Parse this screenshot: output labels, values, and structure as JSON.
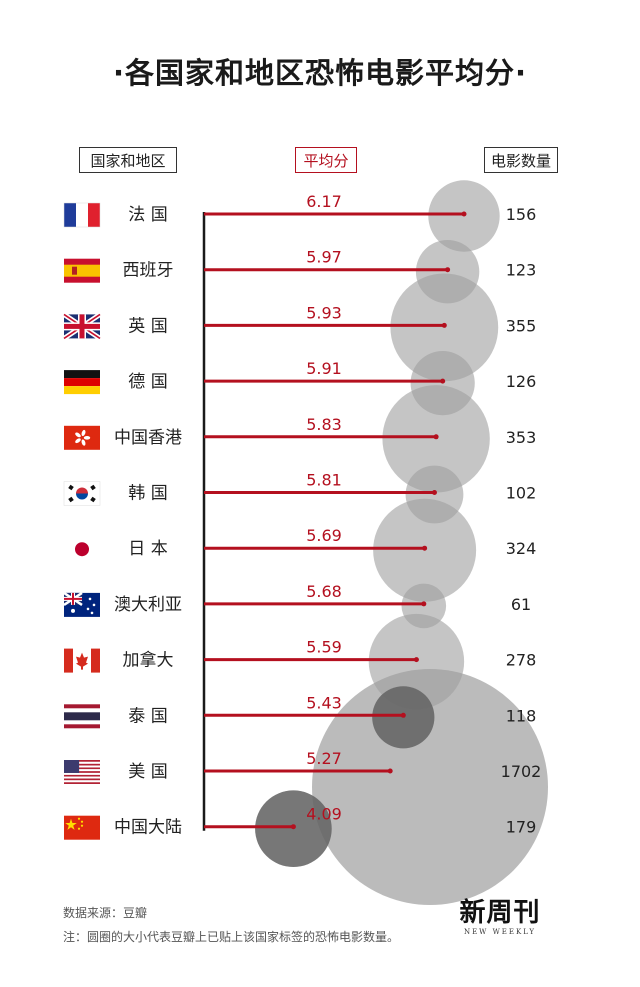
{
  "title": "·各国家和地区恐怖电影平均分·",
  "headers": {
    "country": "国家和地区",
    "avg": "平均分",
    "count": "电影数量"
  },
  "colors": {
    "bar": "#b4101f",
    "bubble": "#9e9e9e",
    "bubble_dot": "#555555",
    "axis": "#1a1a1a"
  },
  "chart_data": {
    "type": "bar",
    "orientation": "horizontal",
    "categories": [
      "法 国",
      "西班牙",
      "英 国",
      "德 国",
      "中国香港",
      "韩 国",
      "日 本",
      "澳大利亚",
      "加拿大",
      "泰 国",
      "美 国",
      "中国大陆"
    ],
    "flags": [
      "flag-france-icon",
      "flag-spain-icon",
      "flag-uk-icon",
      "flag-germany-icon",
      "flag-hongkong-icon",
      "flag-korea-icon",
      "flag-japan-icon",
      "flag-australia-icon",
      "flag-canada-icon",
      "flag-thailand-icon",
      "flag-usa-icon",
      "flag-china-icon"
    ],
    "series": [
      {
        "values": [
          6.17,
          5.97,
          5.93,
          5.91,
          5.83,
          5.81,
          5.69,
          5.68,
          5.59,
          5.43,
          5.27,
          4.09
        ]
      },
      {
        "values": [
          156,
          123,
          355,
          126,
          353,
          102,
          324,
          61,
          278,
          118,
          1702,
          179
        ]
      }
    ],
    "value_labels": [
      "6.17",
      "5.97",
      "5.93",
      "5.91",
      "5.83",
      "5.81",
      "5.69",
      "5.68",
      "5.59",
      "5.43",
      "5.27",
      "4.09"
    ],
    "count_labels": [
      "156",
      "123",
      "355",
      "126",
      "353",
      "102",
      "324",
      "61",
      "278",
      "118",
      "1702",
      "179"
    ],
    "bubble_size_encodes": "电影数量"
  },
  "footer": {
    "source": "数据来源：豆瓣",
    "note": "注：圆圈的大小代表豆瓣上已贴上该国家标签的恐怖电影数量。"
  },
  "brand": {
    "main": "新周刊",
    "sub": "NEW WEEKLY"
  }
}
